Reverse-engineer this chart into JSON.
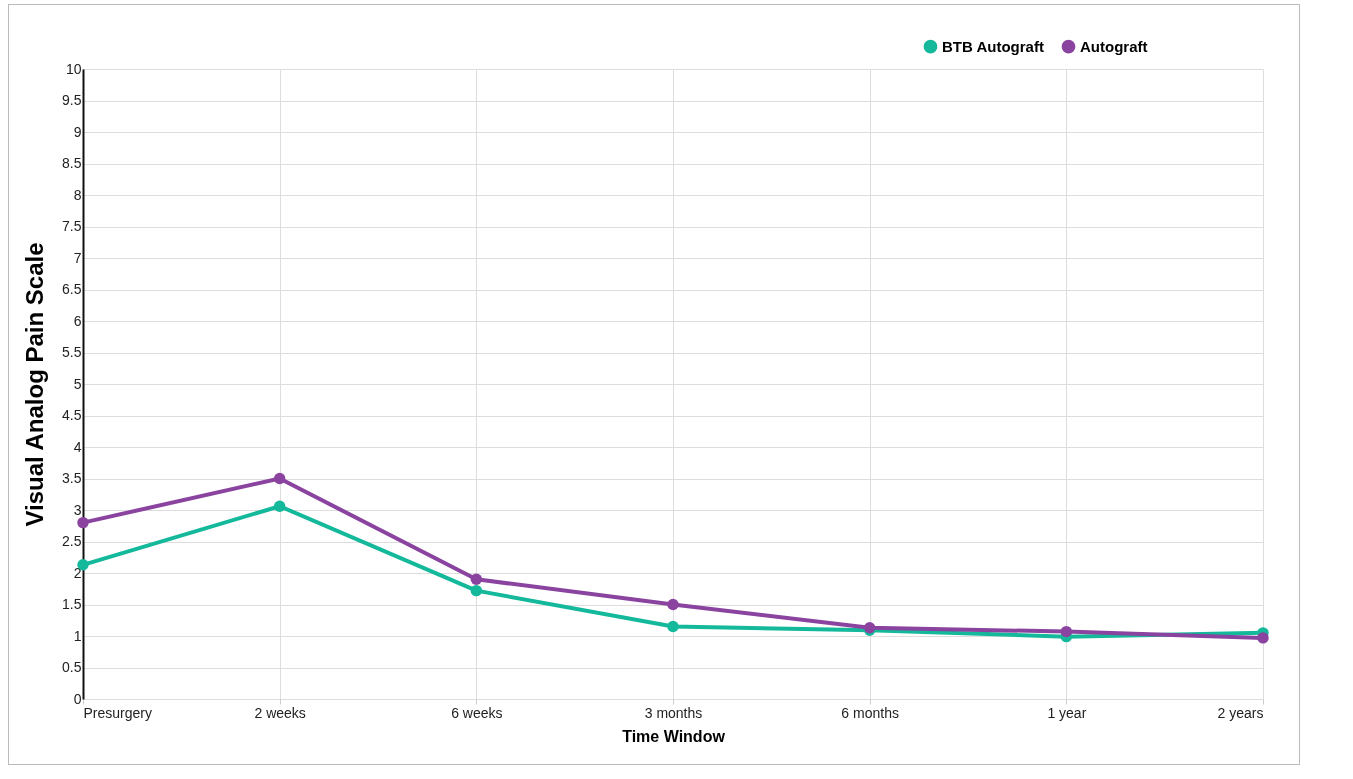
{
  "chart_data": {
    "type": "line",
    "xlabel": "Time Window",
    "ylabel": "Visual Analog Pain Scale",
    "categories": [
      "Presurgery",
      "2 weeks",
      "6 weeks",
      "3 months",
      "6 months",
      "1 year",
      "2 years"
    ],
    "series": [
      {
        "name": "BTB Autograft",
        "color": "#14b89a",
        "values": [
          2.13,
          3.06,
          1.72,
          1.15,
          1.09,
          0.99,
          1.05
        ]
      },
      {
        "name": "Autograft",
        "color": "#8a44a0",
        "values": [
          2.8,
          3.5,
          1.9,
          1.5,
          1.13,
          1.07,
          0.97
        ]
      }
    ],
    "ylim": [
      0,
      10
    ],
    "yticks": [
      0,
      0.5,
      1,
      1.5,
      2,
      2.5,
      3,
      3.5,
      4,
      4.5,
      5,
      5.5,
      6,
      6.5,
      7,
      7.5,
      8,
      8.5,
      9,
      9.5,
      10
    ],
    "grid": true,
    "legend": "top right",
    "marker": "circle",
    "line_style": "solid"
  }
}
